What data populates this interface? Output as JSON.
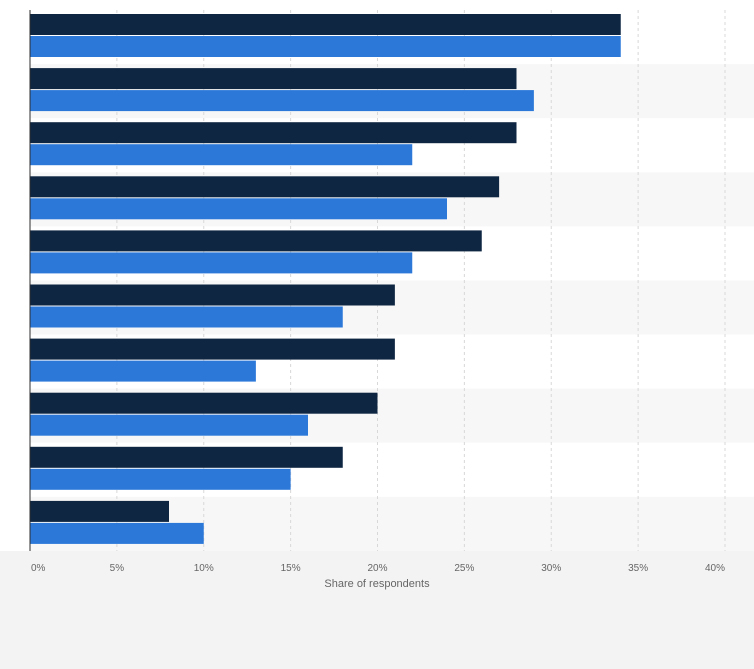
{
  "chart_data": {
    "type": "bar",
    "orientation": "horizontal",
    "categories": [
      "",
      "",
      "",
      "",
      "",
      "",
      "",
      "",
      "",
      ""
    ],
    "series": [
      {
        "color": "#0f2642",
        "values": [
          34,
          28,
          28,
          27,
          26,
          21,
          21,
          20,
          18,
          8
        ]
      },
      {
        "color": "#2b78d9",
        "values": [
          34,
          29,
          22,
          24,
          22,
          18,
          13,
          16,
          15,
          10
        ]
      }
    ],
    "xlabel": "Share of respondents",
    "ylabel": "",
    "xlim": [
      0,
      40
    ],
    "ticks": [
      {
        "value": 0,
        "label": "0%"
      },
      {
        "value": 5,
        "label": "5%"
      },
      {
        "value": 10,
        "label": "10%"
      },
      {
        "value": 15,
        "label": "15%"
      },
      {
        "value": 20,
        "label": "20%"
      },
      {
        "value": 25,
        "label": "25%"
      },
      {
        "value": 30,
        "label": "30%"
      },
      {
        "value": 35,
        "label": "35%"
      },
      {
        "value": 40,
        "label": "40%"
      }
    ],
    "grid": true,
    "legend": "none"
  }
}
